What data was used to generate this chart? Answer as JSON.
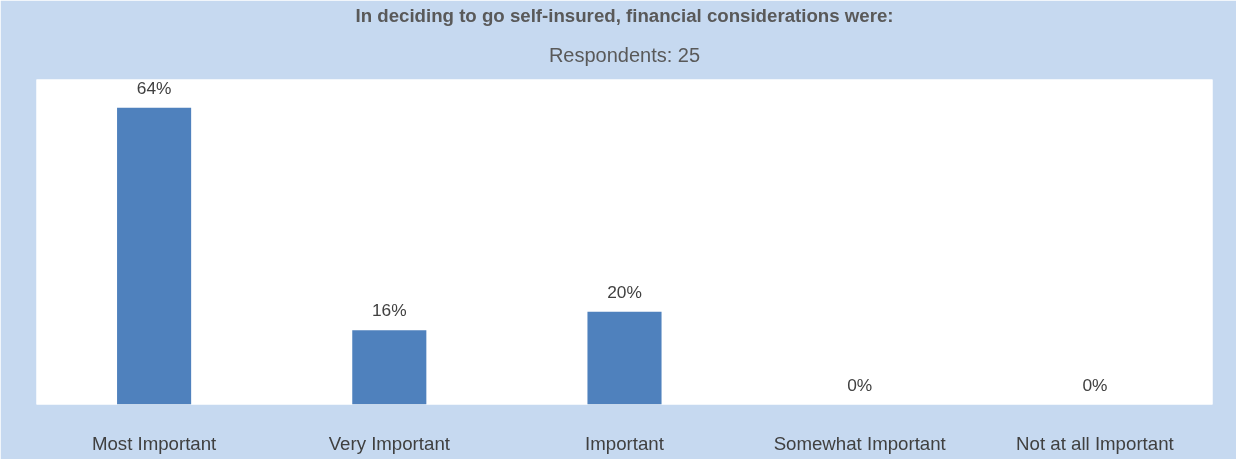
{
  "chart_data": {
    "type": "bar",
    "title": "In deciding to go self-insured, financial considerations were:",
    "subtitle": "Respondents: 25",
    "categories": [
      "Most Important",
      "Very Important",
      "Important",
      "Somewhat Important",
      "Not at all Important"
    ],
    "values": [
      64,
      16,
      20,
      0,
      0
    ],
    "color": "#4f81bd",
    "data_labels": true,
    "value_labels": [
      "64%",
      "16%",
      "20%",
      "0%",
      "0%"
    ]
  }
}
